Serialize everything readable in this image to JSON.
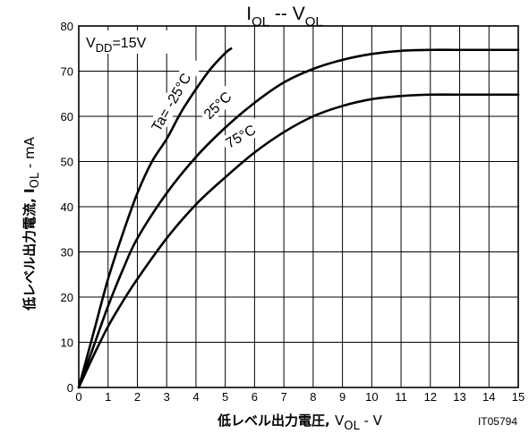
{
  "chart_data": {
    "type": "line",
    "title": {
      "main": "I",
      "main_sub": "OL",
      "sep": " -- V",
      "sep_sub": "OL"
    },
    "condition": {
      "main": "V",
      "sub": "DD",
      "rest": "=15V"
    },
    "ylabel": {
      "main": "低レベル出力電流, I",
      "sub": "OL",
      "rest": " - mA"
    },
    "xlabel": {
      "main": "低レベル出力電圧, ",
      "var": "V",
      "sub": "OL",
      "rest": " - V"
    },
    "code": "IT05794",
    "xlim": [
      0,
      15
    ],
    "ylim": [
      0,
      80
    ],
    "x_ticks": [
      "0",
      "1",
      "2",
      "3",
      "4",
      "5",
      "6",
      "7",
      "8",
      "9",
      "10",
      "11",
      "12",
      "13",
      "14",
      "15"
    ],
    "y_ticks": [
      "0",
      "10",
      "20",
      "30",
      "40",
      "50",
      "60",
      "70",
      "80"
    ],
    "grid": true,
    "series": [
      {
        "name": "Ta= -25°C",
        "points": [
          [
            0,
            0
          ],
          [
            0.5,
            12
          ],
          [
            1,
            24
          ],
          [
            1.5,
            34
          ],
          [
            2,
            43
          ],
          [
            2.5,
            50
          ],
          [
            3,
            55
          ],
          [
            3.5,
            61
          ],
          [
            4,
            66
          ],
          [
            4.5,
            70.5
          ],
          [
            5,
            74
          ],
          [
            5.2,
            75
          ]
        ]
      },
      {
        "name": "25°C",
        "points": [
          [
            0,
            0
          ],
          [
            0.5,
            9
          ],
          [
            1,
            18
          ],
          [
            1.5,
            26
          ],
          [
            2,
            33
          ],
          [
            3,
            43
          ],
          [
            4,
            51
          ],
          [
            5,
            57.5
          ],
          [
            6,
            63
          ],
          [
            7,
            67.5
          ],
          [
            8,
            70.5
          ],
          [
            9,
            72.5
          ],
          [
            10,
            73.8
          ],
          [
            11,
            74.5
          ],
          [
            12,
            74.7
          ],
          [
            13,
            74.7
          ],
          [
            15,
            74.7
          ]
        ]
      },
      {
        "name": "75°C",
        "points": [
          [
            0,
            0
          ],
          [
            0.5,
            7
          ],
          [
            1,
            13.5
          ],
          [
            1.5,
            19
          ],
          [
            2,
            24
          ],
          [
            3,
            33
          ],
          [
            4,
            40.5
          ],
          [
            5,
            46.5
          ],
          [
            6,
            52
          ],
          [
            7,
            56.5
          ],
          [
            8,
            60
          ],
          [
            9,
            62.3
          ],
          [
            10,
            63.8
          ],
          [
            11,
            64.5
          ],
          [
            12,
            64.8
          ],
          [
            13,
            64.8
          ],
          [
            15,
            64.8
          ]
        ]
      }
    ]
  }
}
